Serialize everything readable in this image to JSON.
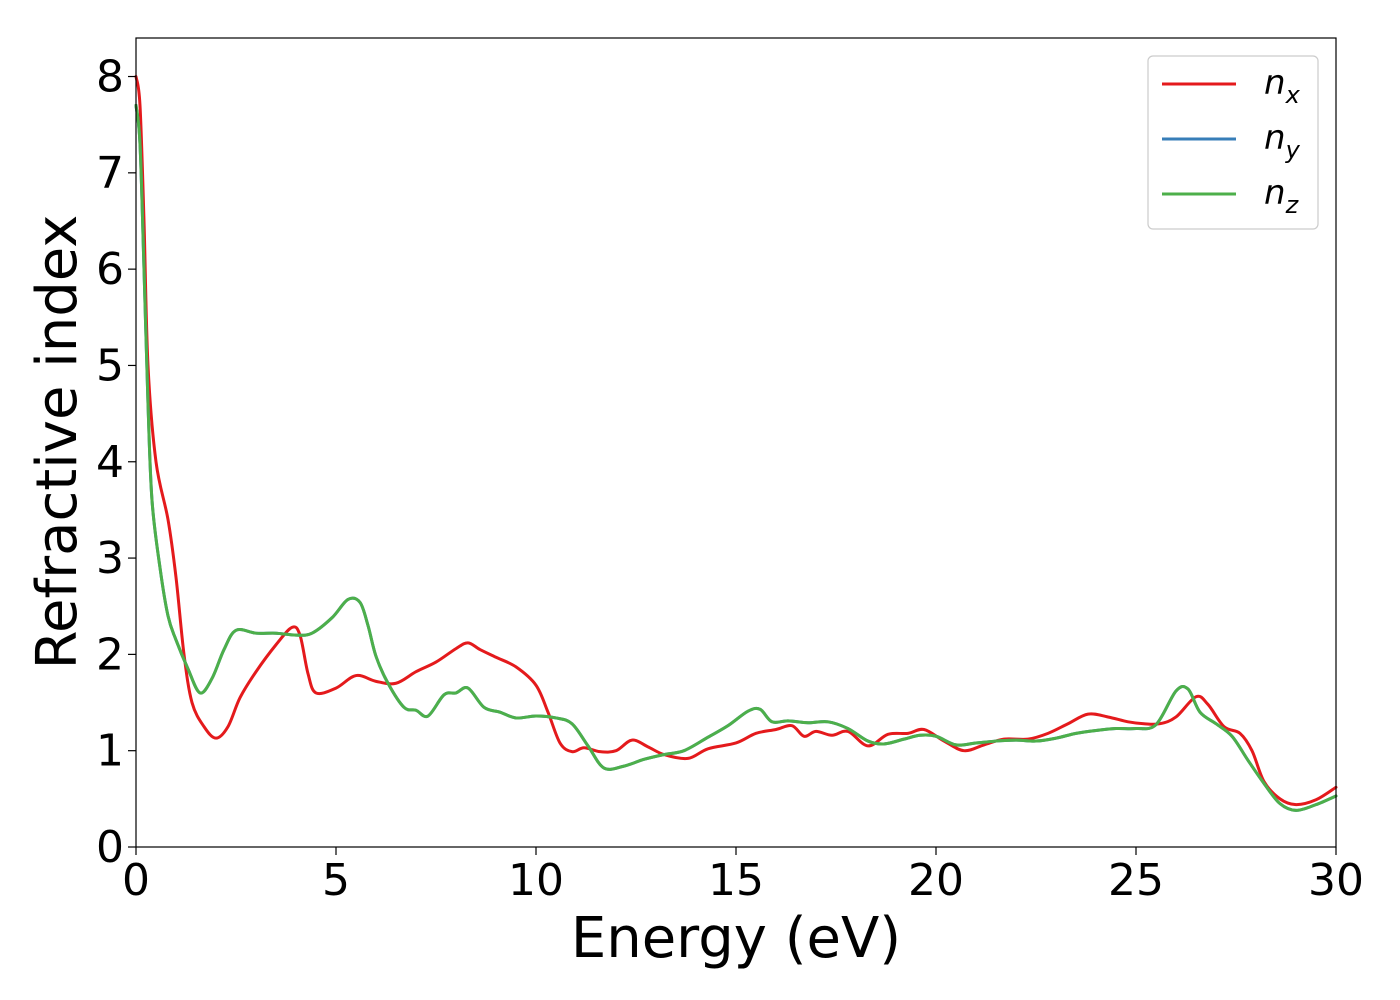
{
  "chart_data": {
    "type": "line",
    "xlabel": "Energy (eV)",
    "ylabel": "Refractive index",
    "xlim": [
      0,
      30
    ],
    "ylim": [
      0,
      8.4
    ],
    "xticks": [
      "0",
      "5",
      "10",
      "15",
      "20",
      "25",
      "30"
    ],
    "yticks": [
      "0",
      "1",
      "2",
      "3",
      "4",
      "5",
      "6",
      "7",
      "8"
    ],
    "grid": false,
    "legend_position": "top-right",
    "series": [
      {
        "name": "n_x",
        "label_base": "n",
        "label_sub": "x",
        "color": "#e41a1c",
        "points": [
          [
            0,
            8.0
          ],
          [
            0.1,
            7.7
          ],
          [
            0.2,
            6.5
          ],
          [
            0.3,
            5.0
          ],
          [
            0.5,
            4.0
          ],
          [
            0.8,
            3.4
          ],
          [
            1.0,
            2.8
          ],
          [
            1.2,
            2.0
          ],
          [
            1.4,
            1.5
          ],
          [
            1.7,
            1.25
          ],
          [
            2.0,
            1.13
          ],
          [
            2.3,
            1.25
          ],
          [
            2.6,
            1.55
          ],
          [
            3.0,
            1.82
          ],
          [
            3.5,
            2.1
          ],
          [
            3.9,
            2.28
          ],
          [
            4.1,
            2.2
          ],
          [
            4.3,
            1.8
          ],
          [
            4.5,
            1.6
          ],
          [
            5.0,
            1.65
          ],
          [
            5.5,
            1.78
          ],
          [
            6.0,
            1.72
          ],
          [
            6.5,
            1.7
          ],
          [
            7.0,
            1.82
          ],
          [
            7.5,
            1.92
          ],
          [
            8.0,
            2.06
          ],
          [
            8.3,
            2.12
          ],
          [
            8.6,
            2.05
          ],
          [
            9.0,
            1.97
          ],
          [
            9.5,
            1.87
          ],
          [
            10.0,
            1.68
          ],
          [
            10.3,
            1.4
          ],
          [
            10.6,
            1.08
          ],
          [
            10.9,
            0.99
          ],
          [
            11.2,
            1.03
          ],
          [
            11.6,
            0.99
          ],
          [
            12.0,
            1.0
          ],
          [
            12.4,
            1.11
          ],
          [
            12.8,
            1.04
          ],
          [
            13.2,
            0.96
          ],
          [
            13.8,
            0.92
          ],
          [
            14.3,
            1.02
          ],
          [
            15.0,
            1.08
          ],
          [
            15.5,
            1.18
          ],
          [
            16.0,
            1.22
          ],
          [
            16.4,
            1.26
          ],
          [
            16.7,
            1.15
          ],
          [
            17.0,
            1.2
          ],
          [
            17.4,
            1.16
          ],
          [
            17.8,
            1.2
          ],
          [
            18.3,
            1.05
          ],
          [
            18.8,
            1.17
          ],
          [
            19.3,
            1.18
          ],
          [
            19.7,
            1.22
          ],
          [
            20.2,
            1.1
          ],
          [
            20.7,
            1.0
          ],
          [
            21.2,
            1.06
          ],
          [
            21.7,
            1.12
          ],
          [
            22.3,
            1.12
          ],
          [
            22.8,
            1.18
          ],
          [
            23.3,
            1.28
          ],
          [
            23.8,
            1.38
          ],
          [
            24.3,
            1.35
          ],
          [
            24.8,
            1.3
          ],
          [
            25.2,
            1.28
          ],
          [
            25.6,
            1.28
          ],
          [
            26.0,
            1.35
          ],
          [
            26.5,
            1.56
          ],
          [
            26.8,
            1.48
          ],
          [
            27.2,
            1.25
          ],
          [
            27.6,
            1.18
          ],
          [
            27.9,
            1.0
          ],
          [
            28.2,
            0.68
          ],
          [
            28.6,
            0.5
          ],
          [
            29.0,
            0.44
          ],
          [
            29.5,
            0.49
          ],
          [
            30.0,
            0.62
          ]
        ]
      },
      {
        "name": "n_y",
        "label_base": "n",
        "label_sub": "y",
        "color": "#377eb8",
        "points": [
          [
            0,
            7.7
          ],
          [
            0.1,
            7.3
          ],
          [
            0.2,
            6.0
          ],
          [
            0.3,
            4.6
          ],
          [
            0.4,
            3.6
          ],
          [
            0.6,
            2.9
          ],
          [
            0.8,
            2.4
          ],
          [
            1.0,
            2.15
          ],
          [
            1.3,
            1.85
          ],
          [
            1.6,
            1.6
          ],
          [
            1.9,
            1.75
          ],
          [
            2.2,
            2.05
          ],
          [
            2.5,
            2.25
          ],
          [
            3.0,
            2.22
          ],
          [
            3.5,
            2.22
          ],
          [
            4.0,
            2.2
          ],
          [
            4.4,
            2.22
          ],
          [
            4.9,
            2.38
          ],
          [
            5.3,
            2.57
          ],
          [
            5.6,
            2.54
          ],
          [
            5.8,
            2.3
          ],
          [
            6.0,
            1.98
          ],
          [
            6.3,
            1.7
          ],
          [
            6.7,
            1.45
          ],
          [
            7.0,
            1.42
          ],
          [
            7.3,
            1.36
          ],
          [
            7.7,
            1.58
          ],
          [
            8.0,
            1.6
          ],
          [
            8.3,
            1.65
          ],
          [
            8.7,
            1.45
          ],
          [
            9.1,
            1.4
          ],
          [
            9.5,
            1.34
          ],
          [
            10.0,
            1.36
          ],
          [
            10.5,
            1.34
          ],
          [
            10.9,
            1.28
          ],
          [
            11.3,
            1.05
          ],
          [
            11.7,
            0.82
          ],
          [
            12.2,
            0.84
          ],
          [
            12.7,
            0.91
          ],
          [
            13.2,
            0.96
          ],
          [
            13.7,
            1.0
          ],
          [
            14.3,
            1.14
          ],
          [
            14.8,
            1.26
          ],
          [
            15.3,
            1.41
          ],
          [
            15.6,
            1.43
          ],
          [
            15.9,
            1.3
          ],
          [
            16.3,
            1.31
          ],
          [
            16.8,
            1.29
          ],
          [
            17.3,
            1.3
          ],
          [
            17.8,
            1.23
          ],
          [
            18.3,
            1.1
          ],
          [
            18.7,
            1.07
          ],
          [
            19.2,
            1.12
          ],
          [
            19.6,
            1.16
          ],
          [
            20.0,
            1.15
          ],
          [
            20.5,
            1.06
          ],
          [
            21.0,
            1.08
          ],
          [
            21.5,
            1.1
          ],
          [
            22.0,
            1.11
          ],
          [
            22.5,
            1.1
          ],
          [
            23.0,
            1.13
          ],
          [
            23.5,
            1.18
          ],
          [
            24.0,
            1.21
          ],
          [
            24.5,
            1.23
          ],
          [
            25.0,
            1.23
          ],
          [
            25.5,
            1.27
          ],
          [
            26.0,
            1.62
          ],
          [
            26.3,
            1.64
          ],
          [
            26.6,
            1.4
          ],
          [
            27.0,
            1.28
          ],
          [
            27.4,
            1.15
          ],
          [
            27.8,
            0.9
          ],
          [
            28.2,
            0.66
          ],
          [
            28.6,
            0.45
          ],
          [
            29.0,
            0.38
          ],
          [
            29.5,
            0.44
          ],
          [
            30.0,
            0.53
          ]
        ]
      },
      {
        "name": "n_z",
        "label_base": "n",
        "label_sub": "z",
        "color": "#4daf4a",
        "points": [
          [
            0,
            7.7
          ],
          [
            0.1,
            7.3
          ],
          [
            0.2,
            6.0
          ],
          [
            0.3,
            4.6
          ],
          [
            0.4,
            3.6
          ],
          [
            0.6,
            2.9
          ],
          [
            0.8,
            2.4
          ],
          [
            1.0,
            2.15
          ],
          [
            1.3,
            1.85
          ],
          [
            1.6,
            1.6
          ],
          [
            1.9,
            1.75
          ],
          [
            2.2,
            2.05
          ],
          [
            2.5,
            2.25
          ],
          [
            3.0,
            2.22
          ],
          [
            3.5,
            2.22
          ],
          [
            4.0,
            2.2
          ],
          [
            4.4,
            2.22
          ],
          [
            4.9,
            2.38
          ],
          [
            5.3,
            2.57
          ],
          [
            5.6,
            2.54
          ],
          [
            5.8,
            2.3
          ],
          [
            6.0,
            1.98
          ],
          [
            6.3,
            1.7
          ],
          [
            6.7,
            1.45
          ],
          [
            7.0,
            1.42
          ],
          [
            7.3,
            1.36
          ],
          [
            7.7,
            1.58
          ],
          [
            8.0,
            1.6
          ],
          [
            8.3,
            1.65
          ],
          [
            8.7,
            1.45
          ],
          [
            9.1,
            1.4
          ],
          [
            9.5,
            1.34
          ],
          [
            10.0,
            1.36
          ],
          [
            10.5,
            1.34
          ],
          [
            10.9,
            1.28
          ],
          [
            11.3,
            1.05
          ],
          [
            11.7,
            0.82
          ],
          [
            12.2,
            0.84
          ],
          [
            12.7,
            0.91
          ],
          [
            13.2,
            0.96
          ],
          [
            13.7,
            1.0
          ],
          [
            14.3,
            1.14
          ],
          [
            14.8,
            1.26
          ],
          [
            15.3,
            1.41
          ],
          [
            15.6,
            1.43
          ],
          [
            15.9,
            1.3
          ],
          [
            16.3,
            1.31
          ],
          [
            16.8,
            1.29
          ],
          [
            17.3,
            1.3
          ],
          [
            17.8,
            1.23
          ],
          [
            18.3,
            1.1
          ],
          [
            18.7,
            1.07
          ],
          [
            19.2,
            1.12
          ],
          [
            19.6,
            1.16
          ],
          [
            20.0,
            1.15
          ],
          [
            20.5,
            1.06
          ],
          [
            21.0,
            1.08
          ],
          [
            21.5,
            1.1
          ],
          [
            22.0,
            1.11
          ],
          [
            22.5,
            1.1
          ],
          [
            23.0,
            1.13
          ],
          [
            23.5,
            1.18
          ],
          [
            24.0,
            1.21
          ],
          [
            24.5,
            1.23
          ],
          [
            25.0,
            1.23
          ],
          [
            25.5,
            1.27
          ],
          [
            26.0,
            1.62
          ],
          [
            26.3,
            1.64
          ],
          [
            26.6,
            1.4
          ],
          [
            27.0,
            1.28
          ],
          [
            27.4,
            1.15
          ],
          [
            27.8,
            0.9
          ],
          [
            28.2,
            0.66
          ],
          [
            28.6,
            0.45
          ],
          [
            29.0,
            0.38
          ],
          [
            29.5,
            0.44
          ],
          [
            30.0,
            0.53
          ]
        ]
      }
    ]
  }
}
